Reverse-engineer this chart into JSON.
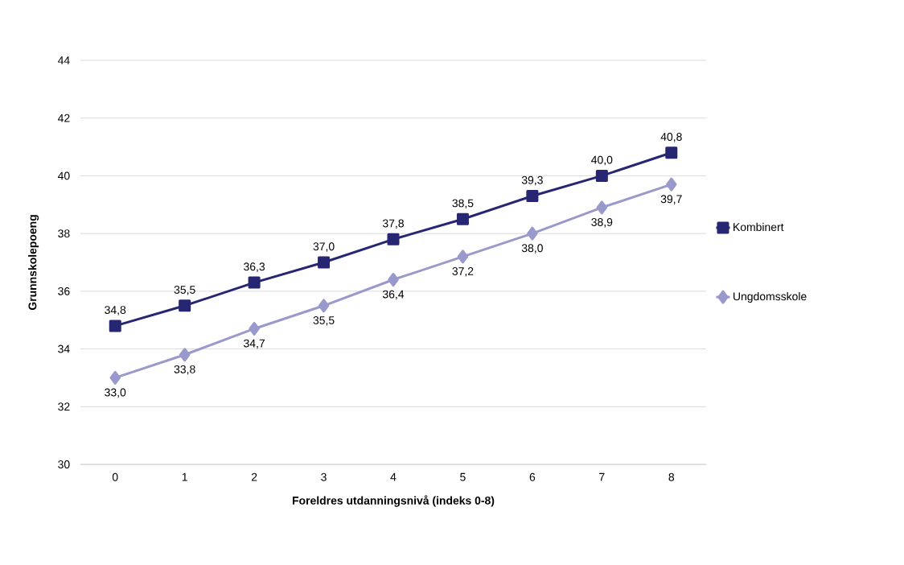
{
  "chart_data": {
    "type": "line",
    "xlabel": "Foreldres utdanningsnivå (indeks 0-8)",
    "ylabel": "Grunnskolepoeng",
    "x": [
      0,
      1,
      2,
      3,
      4,
      5,
      6,
      7,
      8
    ],
    "xlim": [
      -0.5,
      8.5
    ],
    "xticks": [
      0,
      1,
      2,
      3,
      4,
      5,
      6,
      7,
      8
    ],
    "ylim": [
      30,
      44
    ],
    "yticks": [
      30,
      32,
      34,
      36,
      38,
      40,
      42,
      44
    ],
    "grid": "y",
    "legend": "right",
    "line_style": "solid",
    "series": [
      {
        "name": "Kombinert",
        "color": "#262673",
        "marker": "square",
        "values": [
          34.8,
          35.5,
          36.3,
          37.0,
          37.8,
          38.5,
          39.3,
          40.0,
          40.8
        ],
        "value_labels": [
          "34,8",
          "35,5",
          "36,3",
          "37,0",
          "37,8",
          "38,5",
          "39,3",
          "40,0",
          "40,8"
        ]
      },
      {
        "name": "Ungdomsskole",
        "color": "#9999cc",
        "marker": "diamond",
        "values": [
          33.0,
          33.8,
          34.7,
          35.5,
          36.4,
          37.2,
          38.0,
          38.9,
          39.7
        ],
        "value_labels": [
          "33,0",
          "33,8",
          "34,7",
          "35,5",
          "36,4",
          "37,2",
          "38,0",
          "38,9",
          "39,7"
        ]
      }
    ]
  }
}
